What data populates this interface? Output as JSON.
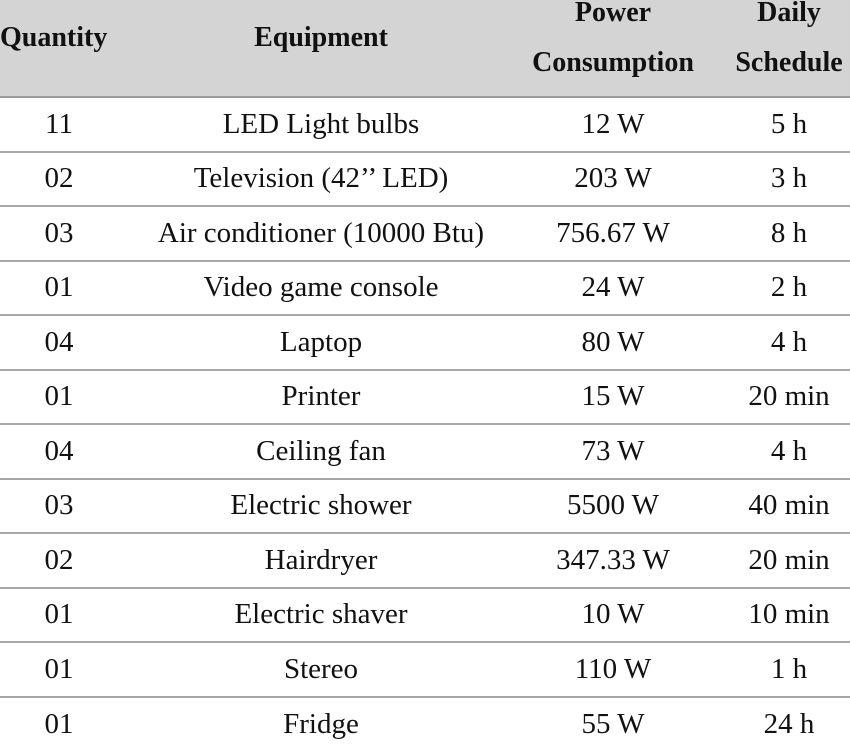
{
  "headers": {
    "quantity": "Quantity",
    "equipment": "Equipment",
    "power_line1": "Power",
    "power_line2": "Consumption",
    "schedule_line1": "Daily",
    "schedule_line2": "Schedule"
  },
  "rows": [
    {
      "quantity": "11",
      "equipment": "LED Light bulbs",
      "power": "12 W",
      "schedule": "5 h"
    },
    {
      "quantity": "02",
      "equipment": "Television (42’’ LED)",
      "power": "203 W",
      "schedule": "3 h"
    },
    {
      "quantity": "03",
      "equipment": "Air conditioner (10000 Btu)",
      "power": "756.67 W",
      "schedule": "8 h"
    },
    {
      "quantity": "01",
      "equipment": "Video game console",
      "power": "24 W",
      "schedule": "2 h"
    },
    {
      "quantity": "04",
      "equipment": "Laptop",
      "power": "80 W",
      "schedule": "4 h"
    },
    {
      "quantity": "01",
      "equipment": "Printer",
      "power": "15 W",
      "schedule": "20 min"
    },
    {
      "quantity": "04",
      "equipment": "Ceiling fan",
      "power": "73 W",
      "schedule": "4 h"
    },
    {
      "quantity": "03",
      "equipment": "Electric shower",
      "power": "5500 W",
      "schedule": "40 min"
    },
    {
      "quantity": "02",
      "equipment": "Hairdryer",
      "power": "347.33 W",
      "schedule": "20 min"
    },
    {
      "quantity": "01",
      "equipment": "Electric shaver",
      "power": "10 W",
      "schedule": "10 min"
    },
    {
      "quantity": "01",
      "equipment": "Stereo",
      "power": "110 W",
      "schedule": "1 h"
    },
    {
      "quantity": "01",
      "equipment": "Fridge",
      "power": "55 W",
      "schedule": "24 h"
    }
  ]
}
